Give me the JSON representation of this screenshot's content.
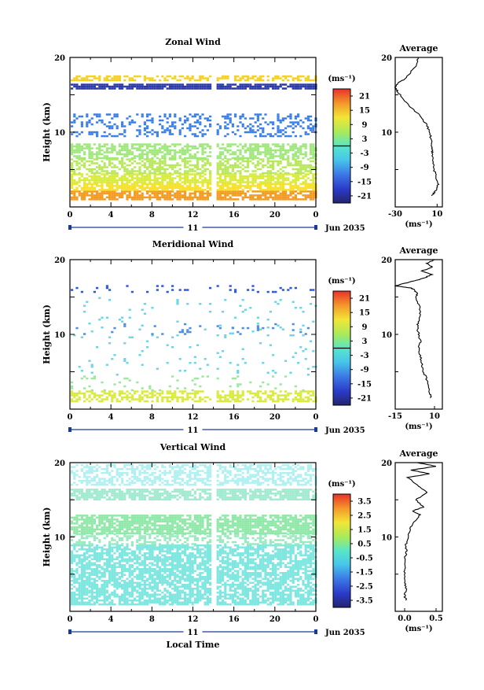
{
  "x_axis": {
    "ticks": [
      "0",
      "4",
      "8",
      "12",
      "16",
      "20",
      "0"
    ],
    "date_label": "11",
    "month_label": "Jun 2035",
    "xlabel": "Local Time"
  },
  "chart_data": [
    {
      "type": "heatmap",
      "title": "Zonal Wind",
      "ylabel": "Height (km)",
      "yticks": [
        "20",
        "10"
      ],
      "colorbar": {
        "unit": "(ms⁻¹)",
        "ticks": [
          "21",
          "15",
          "9",
          "3",
          "-3",
          "-9",
          "-15",
          "-21"
        ]
      },
      "profile": {
        "title": "Average",
        "unit": "(ms⁻¹)",
        "xticks": [
          "-30",
          "10"
        ],
        "yticks": [
          "20",
          "10"
        ],
        "x": [
          5,
          8,
          10,
          11,
          9,
          7,
          6,
          6,
          5,
          5,
          4,
          3,
          0,
          -5,
          -12,
          -20,
          -25,
          -28,
          -30,
          -28,
          -22,
          -15,
          -10,
          -8
        ],
        "y": [
          1.5,
          2,
          2.5,
          3,
          4,
          5,
          6,
          7,
          7.5,
          8,
          9,
          10,
          11,
          12,
          13,
          14,
          15,
          15.5,
          16,
          16.5,
          17,
          18,
          19,
          20
        ]
      },
      "bands": [
        {
          "y1": 1,
          "y2": 2.2,
          "color": "#f29a22",
          "density": 0.78
        },
        {
          "y1": 2.2,
          "y2": 3.2,
          "color": "#f5e02a",
          "density": 0.78
        },
        {
          "y1": 3.2,
          "y2": 4.5,
          "color": "#d8ea3a",
          "density": 0.7
        },
        {
          "y1": 4.5,
          "y2": 6.5,
          "color": "#b7e85a",
          "density": 0.55
        },
        {
          "y1": 6.5,
          "y2": 8.5,
          "color": "#9ee77a",
          "density": 0.6
        },
        {
          "y1": 9.5,
          "y2": 12.5,
          "color": "#3a7ee8",
          "density": 0.32
        },
        {
          "y1": 15.8,
          "y2": 16.5,
          "color": "#2a3aa8",
          "density": 0.85
        },
        {
          "y1": 17,
          "y2": 17.6,
          "color": "#f5d020",
          "density": 0.6
        }
      ]
    },
    {
      "type": "heatmap",
      "title": "Meridional Wind",
      "ylabel": "Height (km)",
      "yticks": [
        "20",
        "10"
      ],
      "colorbar": {
        "unit": "(ms⁻¹)",
        "ticks": [
          "21",
          "15",
          "9",
          "3",
          "-3",
          "-9",
          "-15",
          "-21"
        ]
      },
      "profile": {
        "title": "Average",
        "unit": "(ms⁻¹)",
        "xticks": [
          "-15",
          "10"
        ],
        "yticks": [
          "20",
          "10"
        ],
        "x": [
          8,
          7,
          6,
          5,
          3,
          2,
          1,
          0,
          1,
          0,
          -1,
          0,
          1,
          0,
          -2,
          -1,
          -3,
          -5,
          -15,
          -6,
          3,
          8,
          2,
          9,
          5,
          10
        ],
        "y": [
          1.5,
          2,
          3,
          4,
          5,
          6,
          7,
          8,
          9,
          10,
          11,
          12,
          13,
          14,
          15,
          15.5,
          16,
          16.2,
          16.5,
          17,
          17.5,
          18,
          18.5,
          19,
          19.5,
          20
        ]
      },
      "bands": [
        {
          "y1": 1,
          "y2": 2.5,
          "color": "#d8ea3a",
          "density": 0.55
        },
        {
          "y1": 2.5,
          "y2": 4.5,
          "color": "#9ee7a0",
          "density": 0.08
        },
        {
          "y1": 4.5,
          "y2": 15,
          "color": "#6fd6e8",
          "density": 0.04
        },
        {
          "y1": 10,
          "y2": 11.5,
          "color": "#4a8ee8",
          "density": 0.06
        },
        {
          "y1": 15.8,
          "y2": 16.6,
          "color": "#2a5ad8",
          "density": 0.12
        }
      ]
    },
    {
      "type": "heatmap",
      "title": "Vertical Wind",
      "ylabel": "Height (km)",
      "yticks": [
        "20",
        "10"
      ],
      "colorbar": {
        "unit": "(ms⁻¹)",
        "ticks": [
          "3.5",
          "2.5",
          "1.5",
          "0.5",
          "-0.5",
          "-1.5",
          "-2.5",
          "-3.5"
        ]
      },
      "profile": {
        "title": "Average",
        "unit": "(ms⁻¹)",
        "xticks": [
          "0.0",
          "0.5"
        ],
        "yticks": [
          "20",
          "10"
        ],
        "x": [
          0.02,
          0.0,
          0.02,
          0.01,
          -0.01,
          0.02,
          0.0,
          0.03,
          0.02,
          0.05,
          0.08,
          0.15,
          0.25,
          0.12,
          0.3,
          0.18,
          0.35,
          0.2,
          0.05,
          0.4,
          0.1,
          0.5,
          0.2
        ],
        "y": [
          1.5,
          2,
          3,
          4,
          5,
          6,
          7,
          8,
          9,
          10,
          11,
          12,
          13,
          13.5,
          14,
          15,
          16,
          17,
          18,
          18.5,
          19,
          19.5,
          20
        ]
      },
      "bands": [
        {
          "y1": 1,
          "y2": 9,
          "color": "#7fe6e0",
          "density": 0.72
        },
        {
          "y1": 9,
          "y2": 10.5,
          "color": "#9ae8c0",
          "density": 0.5
        },
        {
          "y1": 10.5,
          "y2": 13,
          "color": "#8fe8a8",
          "density": 0.8
        },
        {
          "y1": 13,
          "y2": 15,
          "color": "#ffffff",
          "density": 0.0
        },
        {
          "y1": 15,
          "y2": 16.5,
          "color": "#a0ead0",
          "density": 0.8
        },
        {
          "y1": 17,
          "y2": 19.8,
          "color": "#b0f0f0",
          "density": 0.55
        }
      ]
    }
  ]
}
